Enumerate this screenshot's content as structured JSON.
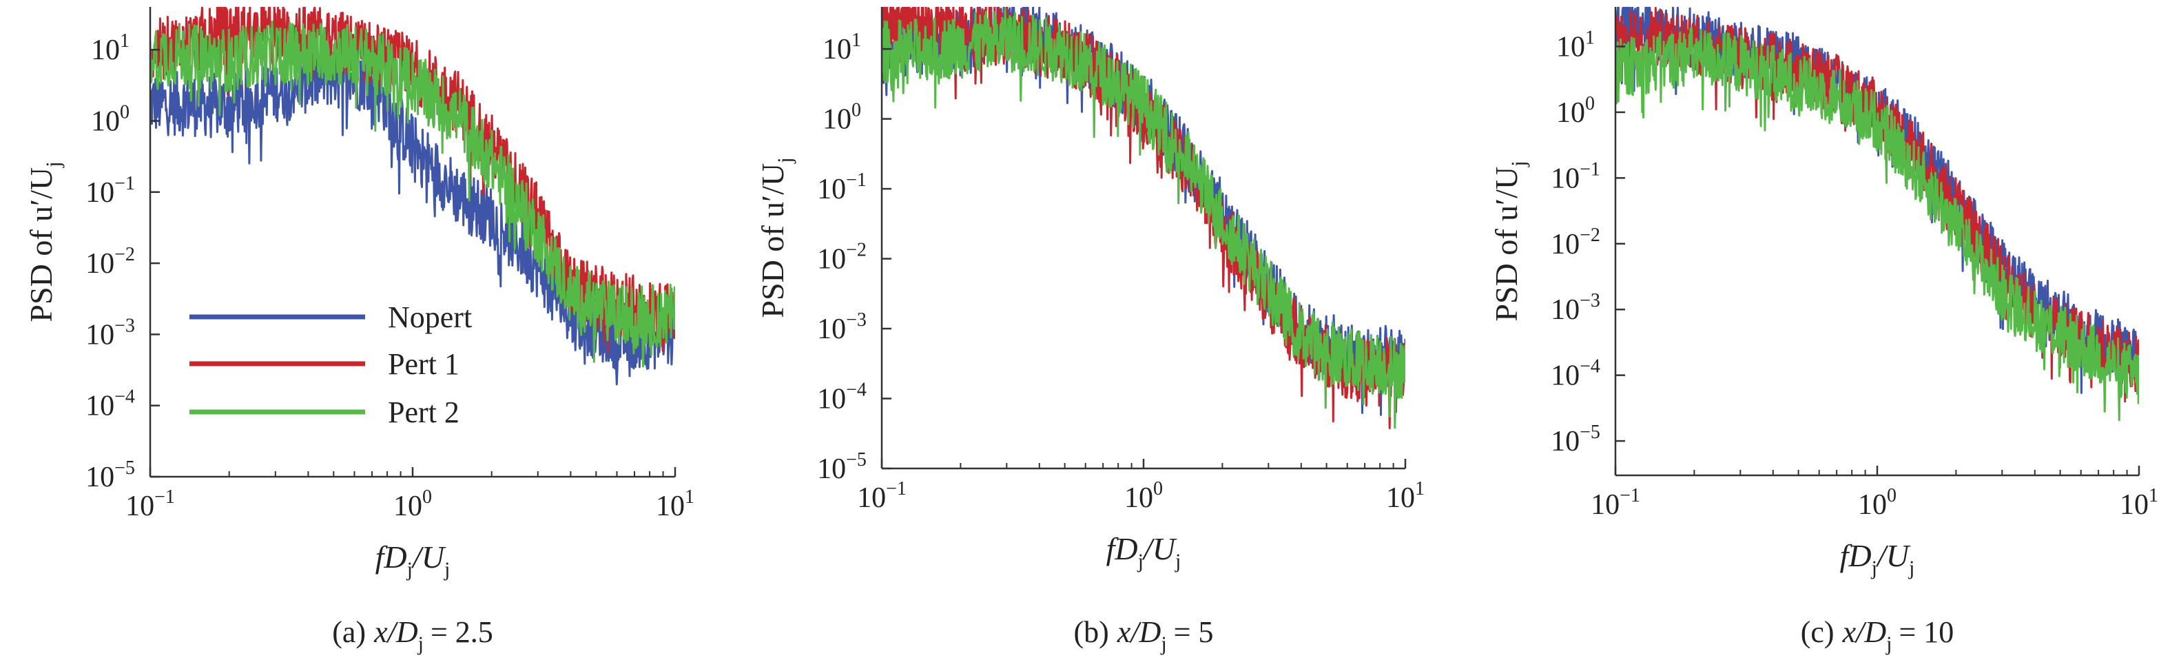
{
  "figure": {
    "legend": {
      "placement": "lower-left",
      "entries": [
        "Nopert",
        "Pert 1",
        "Pert 2"
      ]
    },
    "colors": {
      "Nopert": "#3f55a8",
      "Pert 1": "#c8262e",
      "Pert 2": "#55b947"
    }
  },
  "chart_data": [
    {
      "type": "line",
      "panel": "a",
      "caption_prefix": "(a)",
      "caption_var": "x/D",
      "caption_sub": "j",
      "caption_value": "= 2.5",
      "ylabel_main": "PSD of u′/U",
      "ylabel_sub": "j",
      "xlabel_main": "fD",
      "xlabel_sub": "j",
      "xlabel_tail": "/U",
      "xlabel_sub2": "j",
      "xscale": "log",
      "yscale": "log",
      "xlim": [
        0.1,
        10
      ],
      "ylim": [
        1e-05,
        40
      ],
      "xticks": [
        {
          "base": "10",
          "exp": "−1"
        },
        {
          "base": "10",
          "exp": "0"
        },
        {
          "base": "10",
          "exp": "1"
        }
      ],
      "yticks": [
        {
          "base": "10",
          "exp": "1"
        },
        {
          "base": "10",
          "exp": "0"
        },
        {
          "base": "10",
          "exp": "−1"
        },
        {
          "base": "10",
          "exp": "−2"
        },
        {
          "base": "10",
          "exp": "−3"
        },
        {
          "base": "10",
          "exp": "−4"
        },
        {
          "base": "10",
          "exp": "−5"
        }
      ],
      "series": [
        {
          "name": "Nopert",
          "x": [
            0.1,
            0.2,
            0.3,
            0.5,
            0.7,
            1.0,
            1.5,
            2.0,
            3.0,
            4.0,
            6.0,
            10.0
          ],
          "y": [
            2,
            1.8,
            3,
            5,
            4,
            0.5,
            0.1,
            0.05,
            0.01,
            0.002,
            0.001,
            0.001
          ]
        },
        {
          "name": "Pert 1",
          "x": [
            0.1,
            0.2,
            0.3,
            0.5,
            0.7,
            1.0,
            1.5,
            2.0,
            3.0,
            4.0,
            6.0,
            10.0
          ],
          "y": [
            10,
            20,
            20,
            15,
            10,
            6,
            2,
            0.5,
            0.05,
            0.005,
            0.003,
            0.002
          ]
        },
        {
          "name": "Pert 2",
          "x": [
            0.1,
            0.2,
            0.3,
            0.5,
            0.7,
            1.0,
            1.5,
            2.0,
            3.0,
            4.0,
            6.0,
            10.0
          ],
          "y": [
            10,
            8,
            10,
            10,
            8,
            4,
            1.2,
            0.3,
            0.03,
            0.004,
            0.002,
            0.002
          ]
        }
      ]
    },
    {
      "type": "line",
      "panel": "b",
      "caption_prefix": "(b)",
      "caption_var": "x/D",
      "caption_sub": "j",
      "caption_value": "= 5",
      "ylabel_main": "PSD of u′/U",
      "ylabel_sub": "j",
      "xlabel_main": "fD",
      "xlabel_sub": "j",
      "xlabel_tail": "/U",
      "xlabel_sub2": "j",
      "xscale": "log",
      "yscale": "log",
      "xlim": [
        0.1,
        10
      ],
      "ylim": [
        1e-05,
        40
      ],
      "xticks": [
        {
          "base": "10",
          "exp": "−1"
        },
        {
          "base": "10",
          "exp": "0"
        },
        {
          "base": "10",
          "exp": "1"
        }
      ],
      "yticks": [
        {
          "base": "10",
          "exp": "1"
        },
        {
          "base": "10",
          "exp": "0"
        },
        {
          "base": "10",
          "exp": "−1"
        },
        {
          "base": "10",
          "exp": "−2"
        },
        {
          "base": "10",
          "exp": "−3"
        },
        {
          "base": "10",
          "exp": "−4"
        },
        {
          "base": "10",
          "exp": "−5"
        }
      ],
      "series": [
        {
          "name": "Nopert",
          "x": [
            0.1,
            0.2,
            0.3,
            0.5,
            0.7,
            1.0,
            1.5,
            2.0,
            3.0,
            4.0,
            6.0,
            10.0
          ],
          "y": [
            10,
            15,
            25,
            12,
            6,
            2,
            0.3,
            0.05,
            0.005,
            0.001,
            0.0005,
            0.0004
          ]
        },
        {
          "name": "Pert 1",
          "x": [
            0.1,
            0.2,
            0.3,
            0.5,
            0.7,
            1.0,
            1.5,
            2.0,
            3.0,
            4.0,
            6.0,
            10.0
          ],
          "y": [
            25,
            20,
            18,
            10,
            5,
            1.5,
            0.2,
            0.03,
            0.003,
            0.0008,
            0.0003,
            0.0003
          ]
        },
        {
          "name": "Pert 2",
          "x": [
            0.1,
            0.2,
            0.3,
            0.5,
            0.7,
            1.0,
            1.5,
            2.0,
            3.0,
            4.0,
            6.0,
            10.0
          ],
          "y": [
            10,
            12,
            15,
            10,
            5,
            1.8,
            0.25,
            0.04,
            0.004,
            0.0009,
            0.0004,
            0.0003
          ]
        }
      ]
    },
    {
      "type": "line",
      "panel": "c",
      "caption_prefix": "(c)",
      "caption_var": "x/D",
      "caption_sub": "j",
      "caption_value": "= 10",
      "ylabel_main": "PSD of u′/U",
      "ylabel_sub": "j",
      "xlabel_main": "fD",
      "xlabel_sub": "j",
      "xlabel_tail": "/U",
      "xlabel_sub2": "j",
      "xscale": "log",
      "yscale": "log",
      "xlim": [
        0.1,
        10
      ],
      "ylim": [
        3e-06,
        40
      ],
      "xticks": [
        {
          "base": "10",
          "exp": "−1"
        },
        {
          "base": "10",
          "exp": "0"
        },
        {
          "base": "10",
          "exp": "1"
        }
      ],
      "yticks": [
        {
          "base": "10",
          "exp": "1"
        },
        {
          "base": "10",
          "exp": "0"
        },
        {
          "base": "10",
          "exp": "−1"
        },
        {
          "base": "10",
          "exp": "−2"
        },
        {
          "base": "10",
          "exp": "−3"
        },
        {
          "base": "10",
          "exp": "−4"
        },
        {
          "base": "10",
          "exp": "−5"
        }
      ],
      "series": [
        {
          "name": "Nopert",
          "x": [
            0.1,
            0.2,
            0.3,
            0.5,
            0.7,
            1.0,
            1.5,
            2.0,
            3.0,
            4.0,
            6.0,
            10.0
          ],
          "y": [
            25,
            15,
            10,
            6,
            3,
            1.2,
            0.25,
            0.05,
            0.005,
            0.0015,
            0.0005,
            0.0002
          ]
        },
        {
          "name": "Pert 1",
          "x": [
            0.1,
            0.2,
            0.3,
            0.5,
            0.7,
            1.0,
            1.5,
            2.0,
            3.0,
            4.0,
            6.0,
            10.0
          ],
          "y": [
            20,
            12,
            8,
            5,
            3,
            1.2,
            0.2,
            0.04,
            0.004,
            0.001,
            0.0004,
            0.00015
          ]
        },
        {
          "name": "Pert 2",
          "x": [
            0.1,
            0.2,
            0.3,
            0.5,
            0.7,
            1.0,
            1.5,
            2.0,
            3.0,
            4.0,
            6.0,
            10.0
          ],
          "y": [
            5,
            8,
            6,
            3,
            2,
            0.8,
            0.1,
            0.02,
            0.002,
            0.0008,
            0.0003,
            0.0001
          ]
        }
      ]
    }
  ]
}
